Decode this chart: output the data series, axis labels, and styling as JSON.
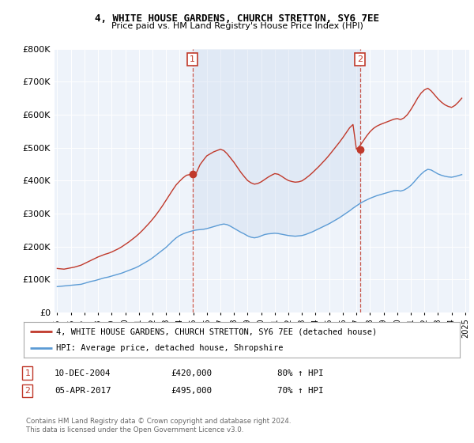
{
  "title": "4, WHITE HOUSE GARDENS, CHURCH STRETTON, SY6 7EE",
  "subtitle": "Price paid vs. HM Land Registry's House Price Index (HPI)",
  "legend_line1": "4, WHITE HOUSE GARDENS, CHURCH STRETTON, SY6 7EE (detached house)",
  "legend_line2": "HPI: Average price, detached house, Shropshire",
  "annotation1_date": "10-DEC-2004",
  "annotation1_price": "£420,000",
  "annotation1_hpi": "80% ↑ HPI",
  "annotation2_date": "05-APR-2017",
  "annotation2_price": "£495,000",
  "annotation2_hpi": "70% ↑ HPI",
  "copyright": "Contains HM Land Registry data © Crown copyright and database right 2024.\nThis data is licensed under the Open Government Licence v3.0.",
  "hpi_color": "#5b9bd5",
  "price_color": "#c0392b",
  "vline_color": "#c0392b",
  "background_color": "#ffffff",
  "plot_bg_color": "#eef3fa",
  "shade_color": "#c8d8ee",
  "ylim": [
    0,
    800000
  ],
  "yticks": [
    0,
    100000,
    200000,
    300000,
    400000,
    500000,
    600000,
    700000,
    800000
  ],
  "xlim_start": 1994.8,
  "xlim_end": 2025.3,
  "sale1_x": 2004.95,
  "sale1_y": 420000,
  "sale2_x": 2017.27,
  "sale2_y": 495000,
  "hpi_years": [
    1995.0,
    1995.25,
    1995.5,
    1995.75,
    1996.0,
    1996.25,
    1996.5,
    1996.75,
    1997.0,
    1997.25,
    1997.5,
    1997.75,
    1998.0,
    1998.25,
    1998.5,
    1998.75,
    1999.0,
    1999.25,
    1999.5,
    1999.75,
    2000.0,
    2000.25,
    2000.5,
    2000.75,
    2001.0,
    2001.25,
    2001.5,
    2001.75,
    2002.0,
    2002.25,
    2002.5,
    2002.75,
    2003.0,
    2003.25,
    2003.5,
    2003.75,
    2004.0,
    2004.25,
    2004.5,
    2004.75,
    2005.0,
    2005.25,
    2005.5,
    2005.75,
    2006.0,
    2006.25,
    2006.5,
    2006.75,
    2007.0,
    2007.25,
    2007.5,
    2007.75,
    2008.0,
    2008.25,
    2008.5,
    2008.75,
    2009.0,
    2009.25,
    2009.5,
    2009.75,
    2010.0,
    2010.25,
    2010.5,
    2010.75,
    2011.0,
    2011.25,
    2011.5,
    2011.75,
    2012.0,
    2012.25,
    2012.5,
    2012.75,
    2013.0,
    2013.25,
    2013.5,
    2013.75,
    2014.0,
    2014.25,
    2014.5,
    2014.75,
    2015.0,
    2015.25,
    2015.5,
    2015.75,
    2016.0,
    2016.25,
    2016.5,
    2016.75,
    2017.0,
    2017.25,
    2017.5,
    2017.75,
    2018.0,
    2018.25,
    2018.5,
    2018.75,
    2019.0,
    2019.25,
    2019.5,
    2019.75,
    2020.0,
    2020.25,
    2020.5,
    2020.75,
    2021.0,
    2021.25,
    2021.5,
    2021.75,
    2022.0,
    2022.25,
    2022.5,
    2022.75,
    2023.0,
    2023.25,
    2023.5,
    2023.75,
    2024.0,
    2024.25,
    2024.5,
    2024.75
  ],
  "hpi_values": [
    78000,
    79000,
    80000,
    81000,
    82000,
    83000,
    84000,
    85000,
    88000,
    91000,
    94000,
    96000,
    99000,
    102000,
    105000,
    107000,
    110000,
    113000,
    116000,
    119000,
    123000,
    127000,
    131000,
    135000,
    140000,
    146000,
    152000,
    158000,
    165000,
    173000,
    181000,
    189000,
    197000,
    207000,
    217000,
    226000,
    233000,
    238000,
    242000,
    245000,
    248000,
    250000,
    251000,
    252000,
    254000,
    257000,
    260000,
    263000,
    266000,
    268000,
    266000,
    261000,
    255000,
    249000,
    243000,
    238000,
    232000,
    228000,
    226000,
    228000,
    232000,
    236000,
    238000,
    239000,
    240000,
    239000,
    237000,
    235000,
    233000,
    232000,
    231000,
    232000,
    233000,
    236000,
    240000,
    244000,
    249000,
    254000,
    259000,
    264000,
    269000,
    275000,
    281000,
    287000,
    294000,
    301000,
    308000,
    316000,
    323000,
    330000,
    336000,
    341000,
    346000,
    350000,
    354000,
    357000,
    360000,
    363000,
    366000,
    369000,
    370000,
    368000,
    371000,
    377000,
    385000,
    396000,
    408000,
    419000,
    428000,
    434000,
    432000,
    426000,
    420000,
    416000,
    413000,
    411000,
    410000,
    412000,
    415000,
    418000
  ],
  "red_years": [
    1995.0,
    1995.25,
    1995.5,
    1995.75,
    1996.0,
    1996.25,
    1996.5,
    1996.75,
    1997.0,
    1997.25,
    1997.5,
    1997.75,
    1998.0,
    1998.25,
    1998.5,
    1998.75,
    1999.0,
    1999.25,
    1999.5,
    1999.75,
    2000.0,
    2000.25,
    2000.5,
    2000.75,
    2001.0,
    2001.25,
    2001.5,
    2001.75,
    2002.0,
    2002.25,
    2002.5,
    2002.75,
    2003.0,
    2003.25,
    2003.5,
    2003.75,
    2004.0,
    2004.25,
    2004.5,
    2004.75,
    2005.0,
    2005.25,
    2005.5,
    2005.75,
    2006.0,
    2006.25,
    2006.5,
    2006.75,
    2007.0,
    2007.25,
    2007.5,
    2007.75,
    2008.0,
    2008.25,
    2008.5,
    2008.75,
    2009.0,
    2009.25,
    2009.5,
    2009.75,
    2010.0,
    2010.25,
    2010.5,
    2010.75,
    2011.0,
    2011.25,
    2011.5,
    2011.75,
    2012.0,
    2012.25,
    2012.5,
    2012.75,
    2013.0,
    2013.25,
    2013.5,
    2013.75,
    2014.0,
    2014.25,
    2014.5,
    2014.75,
    2015.0,
    2015.25,
    2015.5,
    2015.75,
    2016.0,
    2016.25,
    2016.5,
    2016.75,
    2017.0,
    2017.25,
    2017.5,
    2017.75,
    2018.0,
    2018.25,
    2018.5,
    2018.75,
    2019.0,
    2019.25,
    2019.5,
    2019.75,
    2020.0,
    2020.25,
    2020.5,
    2020.75,
    2021.0,
    2021.25,
    2021.5,
    2021.75,
    2022.0,
    2022.25,
    2022.5,
    2022.75,
    2023.0,
    2023.25,
    2023.5,
    2023.75,
    2024.0,
    2024.25,
    2024.5,
    2024.75
  ],
  "red_values": [
    133000,
    132000,
    131000,
    133000,
    135000,
    137000,
    140000,
    143000,
    148000,
    153000,
    158000,
    163000,
    168000,
    172000,
    176000,
    179000,
    183000,
    188000,
    193000,
    199000,
    206000,
    213000,
    221000,
    229000,
    238000,
    248000,
    259000,
    270000,
    282000,
    295000,
    309000,
    324000,
    340000,
    356000,
    372000,
    387000,
    398000,
    408000,
    416000,
    418000,
    420000,
    425000,
    448000,
    462000,
    475000,
    481000,
    487000,
    491000,
    495000,
    491000,
    481000,
    468000,
    455000,
    440000,
    425000,
    412000,
    400000,
    393000,
    389000,
    391000,
    396000,
    403000,
    410000,
    416000,
    421000,
    419000,
    413000,
    406000,
    400000,
    397000,
    395000,
    396000,
    399000,
    406000,
    414000,
    423000,
    433000,
    443000,
    454000,
    465000,
    477000,
    490000,
    503000,
    516000,
    530000,
    545000,
    560000,
    570000,
    495000,
    505000,
    520000,
    535000,
    548000,
    558000,
    565000,
    570000,
    574000,
    578000,
    582000,
    586000,
    588000,
    585000,
    590000,
    600000,
    615000,
    632000,
    650000,
    665000,
    675000,
    680000,
    672000,
    660000,
    648000,
    638000,
    630000,
    625000,
    622000,
    628000,
    638000,
    650000
  ]
}
